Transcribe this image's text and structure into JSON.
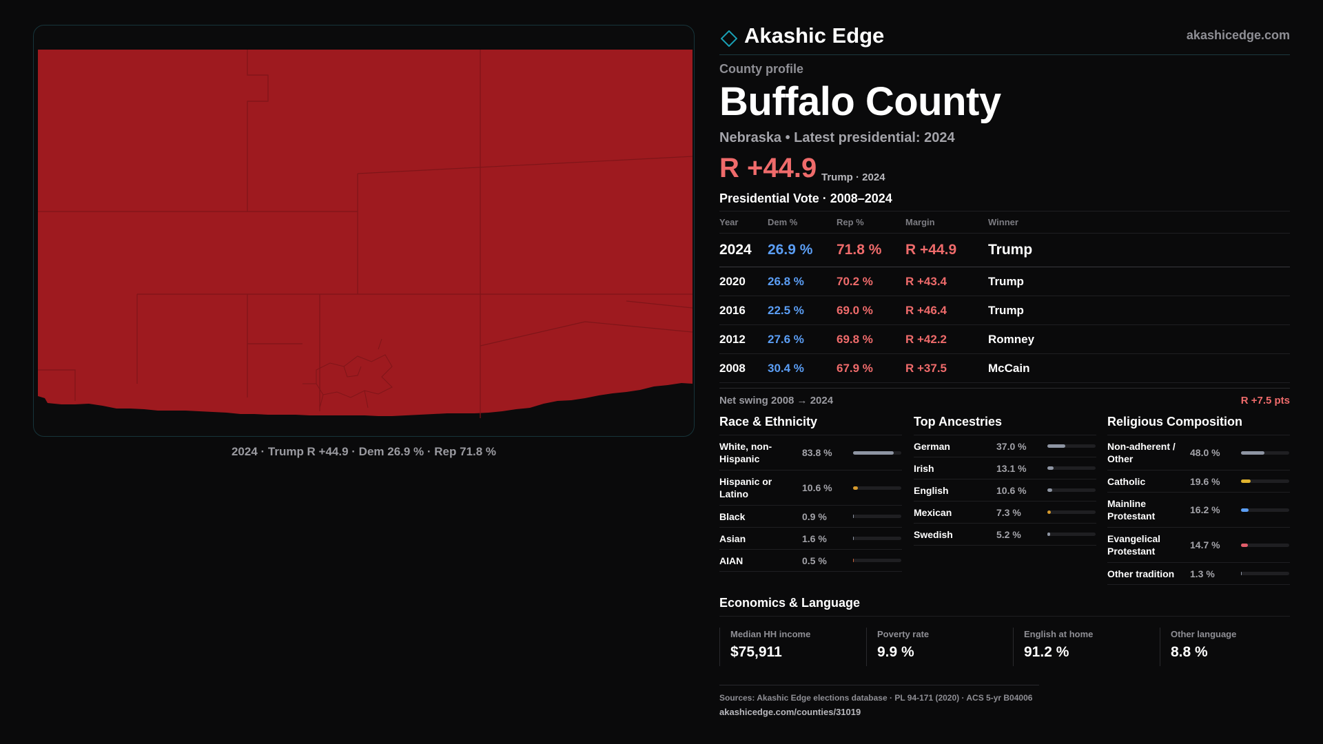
{
  "brand": {
    "name": "Akashic Edge",
    "url": "akashicedge.com",
    "accent": "#1aa0b5"
  },
  "profile": {
    "eyebrow": "County profile",
    "county": "Buffalo County",
    "subtitle": "Nebraska • Latest presidential: 2024",
    "margin": "R +44.9",
    "margin_note": "Trump · 2024"
  },
  "map": {
    "caption": "2024 · Trump R +44.9 · Dem 26.9 % · Rep 71.8 %",
    "fill_color": "#9e1a1f"
  },
  "vote": {
    "title": "Presidential Vote · 2008–2024",
    "headers": [
      "Year",
      "Dem %",
      "Rep %",
      "Margin",
      "Winner"
    ],
    "rows": [
      {
        "year": "2024",
        "dem": "26.9 %",
        "rep": "71.8 %",
        "margin": "R +44.9",
        "winner": "Trump"
      },
      {
        "year": "2020",
        "dem": "26.8 %",
        "rep": "70.2 %",
        "margin": "R +43.4",
        "winner": "Trump"
      },
      {
        "year": "2016",
        "dem": "22.5 %",
        "rep": "69.0 %",
        "margin": "R +46.4",
        "winner": "Trump"
      },
      {
        "year": "2012",
        "dem": "27.6 %",
        "rep": "69.8 %",
        "margin": "R +42.2",
        "winner": "Romney"
      },
      {
        "year": "2008",
        "dem": "30.4 %",
        "rep": "67.9 %",
        "margin": "R +37.5",
        "winner": "McCain"
      }
    ],
    "swing_label": "Net swing 2008 → 2024",
    "swing_value": "R +7.5 pts"
  },
  "race": {
    "title": "Race & Ethnicity",
    "rows": [
      {
        "label": "White, non-Hispanic",
        "value": "83.8 %",
        "pct": 83.8,
        "color": "#8e95a3"
      },
      {
        "label": "Hispanic or Latino",
        "value": "10.6 %",
        "pct": 10.6,
        "color": "#d69a2d"
      },
      {
        "label": "Black",
        "value": "0.9 %",
        "pct": 0.9,
        "color": "#8e95a3"
      },
      {
        "label": "Asian",
        "value": "1.6 %",
        "pct": 1.6,
        "color": "#8e95a3"
      },
      {
        "label": "AIAN",
        "value": "0.5 %",
        "pct": 0.5,
        "color": "#d0643a"
      }
    ]
  },
  "ancestry": {
    "title": "Top Ancestries",
    "rows": [
      {
        "label": "German",
        "value": "37.0 %",
        "pct": 37.0,
        "color": "#8e95a3"
      },
      {
        "label": "Irish",
        "value": "13.1 %",
        "pct": 13.1,
        "color": "#8e95a3"
      },
      {
        "label": "English",
        "value": "10.6 %",
        "pct": 10.6,
        "color": "#8e95a3"
      },
      {
        "label": "Mexican",
        "value": "7.3 %",
        "pct": 7.3,
        "color": "#d69a2d"
      },
      {
        "label": "Swedish",
        "value": "5.2 %",
        "pct": 5.2,
        "color": "#8e95a3"
      }
    ]
  },
  "religion": {
    "title": "Religious Composition",
    "rows": [
      {
        "label": "Non-adherent / Other",
        "value": "48.0 %",
        "pct": 48.0,
        "color": "#8e95a3"
      },
      {
        "label": "Catholic",
        "value": "19.6 %",
        "pct": 19.6,
        "color": "#e0b32e"
      },
      {
        "label": "Mainline Protestant",
        "value": "16.2 %",
        "pct": 16.2,
        "color": "#5b9ef5"
      },
      {
        "label": "Evangelical Protestant",
        "value": "14.7 %",
        "pct": 14.7,
        "color": "#e05d6a"
      },
      {
        "label": "Other tradition",
        "value": "1.3 %",
        "pct": 1.3,
        "color": "#8e95a3"
      }
    ]
  },
  "economics": {
    "title": "Economics & Language",
    "cards": [
      {
        "label": "Median HH income",
        "value": "$75,911"
      },
      {
        "label": "Poverty rate",
        "value": "9.9 %"
      },
      {
        "label": "English at home",
        "value": "91.2 %"
      },
      {
        "label": "Other language",
        "value": "8.8 %"
      }
    ]
  },
  "footer": {
    "sources": "Sources: Akashic Edge elections database · PL 94-171 (2020) · ACS 5-yr B04006",
    "url": "akashicedge.com/counties/31019"
  }
}
